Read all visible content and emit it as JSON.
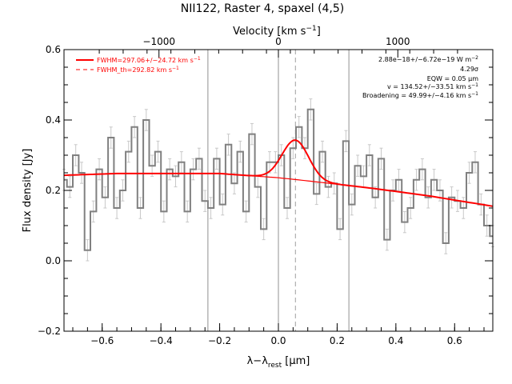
{
  "chart_data": {
    "type": "line",
    "title": "NII122, Raster 4, spaxel (4,5)",
    "xlabel": "λ−λ",
    "xlabel_sub": "rest",
    "xlabel_unit": " [μm]",
    "ylabel": "Flux density [Jy]",
    "top_axis_label": "Velocity [km s",
    "top_axis_label_sup": "−1",
    "top_axis_label_end": "]",
    "xlim": [
      -0.73,
      0.73
    ],
    "ylim": [
      -0.2,
      0.6
    ],
    "x_ticks": [
      -0.6,
      -0.4,
      -0.2,
      0.0,
      0.2,
      0.4,
      0.6
    ],
    "x_tick_labels": [
      "−0.6",
      "−0.4",
      "−0.2",
      "0.0",
      "0.2",
      "0.4",
      "0.6"
    ],
    "y_ticks": [
      -0.2,
      0.0,
      0.2,
      0.4,
      0.6
    ],
    "y_tick_labels": [
      "−0.2",
      "0.0",
      "0.2",
      "0.4",
      "0.6"
    ],
    "top_ticks_velocity": [
      -1000,
      0,
      1000
    ],
    "top_tick_labels": [
      "−1000",
      "0",
      "1000"
    ],
    "vertical_lines_x": [
      -0.24,
      0.0,
      0.24
    ],
    "line_center_x": 0.058,
    "spectrum": {
      "x": [
        -0.73,
        -0.71,
        -0.69,
        -0.67,
        -0.65,
        -0.63,
        -0.61,
        -0.59,
        -0.57,
        -0.55,
        -0.53,
        -0.51,
        -0.49,
        -0.47,
        -0.45,
        -0.43,
        -0.41,
        -0.39,
        -0.37,
        -0.35,
        -0.33,
        -0.31,
        -0.29,
        -0.27,
        -0.25,
        -0.23,
        -0.21,
        -0.19,
        -0.17,
        -0.15,
        -0.13,
        -0.11,
        -0.09,
        -0.07,
        -0.05,
        -0.03,
        -0.01,
        0.01,
        0.03,
        0.05,
        0.07,
        0.09,
        0.11,
        0.13,
        0.15,
        0.17,
        0.19,
        0.21,
        0.23,
        0.25,
        0.27,
        0.29,
        0.31,
        0.33,
        0.35,
        0.37,
        0.39,
        0.41,
        0.43,
        0.45,
        0.47,
        0.49,
        0.51,
        0.53,
        0.55,
        0.57,
        0.59,
        0.61,
        0.63,
        0.65,
        0.67,
        0.69,
        0.71,
        0.73
      ],
      "y": [
        0.23,
        0.21,
        0.3,
        0.25,
        0.03,
        0.14,
        0.26,
        0.18,
        0.35,
        0.15,
        0.2,
        0.31,
        0.38,
        0.15,
        0.4,
        0.27,
        0.31,
        0.14,
        0.26,
        0.24,
        0.28,
        0.14,
        0.26,
        0.29,
        0.17,
        0.15,
        0.29,
        0.16,
        0.33,
        0.22,
        0.31,
        0.14,
        0.36,
        0.21,
        0.09,
        0.28,
        0.28,
        0.3,
        0.15,
        0.32,
        0.38,
        0.32,
        0.43,
        0.19,
        0.31,
        0.21,
        0.22,
        0.09,
        0.34,
        0.16,
        0.27,
        0.24,
        0.3,
        0.18,
        0.29,
        0.06,
        0.2,
        0.23,
        0.11,
        0.15,
        0.23,
        0.26,
        0.18,
        0.23,
        0.2,
        0.05,
        0.18,
        0.17,
        0.15,
        0.25,
        0.28,
        0.16,
        0.1,
        0.07
      ],
      "err": [
        0.03,
        0.03,
        0.03,
        0.03,
        0.03,
        0.03,
        0.03,
        0.03,
        0.03,
        0.03,
        0.03,
        0.03,
        0.03,
        0.03,
        0.03,
        0.03,
        0.03,
        0.03,
        0.03,
        0.03,
        0.03,
        0.03,
        0.03,
        0.03,
        0.03,
        0.03,
        0.03,
        0.03,
        0.03,
        0.03,
        0.03,
        0.03,
        0.03,
        0.03,
        0.03,
        0.03,
        0.03,
        0.03,
        0.03,
        0.03,
        0.03,
        0.03,
        0.03,
        0.03,
        0.03,
        0.03,
        0.03,
        0.03,
        0.03,
        0.03,
        0.03,
        0.03,
        0.03,
        0.03,
        0.03,
        0.03,
        0.03,
        0.03,
        0.03,
        0.03,
        0.03,
        0.03,
        0.03,
        0.03,
        0.03,
        0.03,
        0.03,
        0.03,
        0.03,
        0.03,
        0.03,
        0.03,
        0.03,
        0.03
      ],
      "color": "#808080"
    },
    "fit": {
      "continuum_points": [
        [
          -0.73,
          0.243
        ],
        [
          -0.55,
          0.248
        ],
        [
          -0.2,
          0.248
        ],
        [
          -0.1,
          0.242
        ],
        [
          0.0,
          0.236
        ],
        [
          0.1,
          0.227
        ],
        [
          0.3,
          0.208
        ],
        [
          0.5,
          0.186
        ],
        [
          0.73,
          0.155
        ]
      ],
      "gaussian": {
        "center": 0.058,
        "amplitude": 0.112,
        "sigma": 0.045,
        "xmin": -0.1,
        "xmax": 0.24
      },
      "color": "#ff0000"
    },
    "legend": {
      "placement": "top-left",
      "entries": [
        {
          "label": "FWHM=297.06+/−24.72 km s",
          "sup": "−1",
          "style": "solid"
        },
        {
          "label": "FWHM_th=292.82 km s",
          "sup": "−1",
          "style": "dashed"
        }
      ]
    },
    "annotations": {
      "placement": "top-right",
      "lines": [
        {
          "text": "2.88e−18+/−6.72e−19 W m",
          "sup": "−2"
        },
        {
          "text": "4.29σ",
          "sup": ""
        },
        {
          "text": "EQW = 0.05 μm",
          "sup": ""
        },
        {
          "text": "v = 134.52+/−33.51 km s",
          "sup": "−1"
        },
        {
          "text": "Broadening = 49.99+/−4.16 km s",
          "sup": "−1"
        }
      ]
    }
  }
}
